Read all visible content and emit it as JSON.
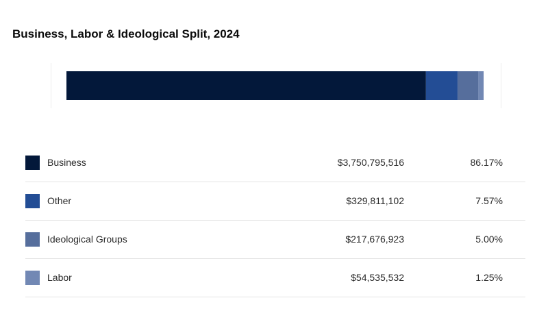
{
  "chart_data": {
    "type": "bar",
    "orientation": "horizontal-stacked-100",
    "title": "Business, Labor & Ideological Split, 2024",
    "legend_placement": "bottom-table",
    "series": [
      {
        "name": "Business",
        "amount": "$3,750,795,516",
        "percent_label": "86.17%",
        "value": 86.17,
        "color": "#03183a"
      },
      {
        "name": "Other",
        "amount": "$329,811,102",
        "percent_label": "7.57%",
        "value": 7.57,
        "color": "#234d95"
      },
      {
        "name": "Ideological Groups",
        "amount": "$217,676,923",
        "percent_label": "5.00%",
        "value": 5.0,
        "color": "#566e9c"
      },
      {
        "name": "Labor",
        "amount": "$54,535,532",
        "percent_label": "1.25%",
        "value": 1.25,
        "color": "#7288b4"
      }
    ]
  }
}
